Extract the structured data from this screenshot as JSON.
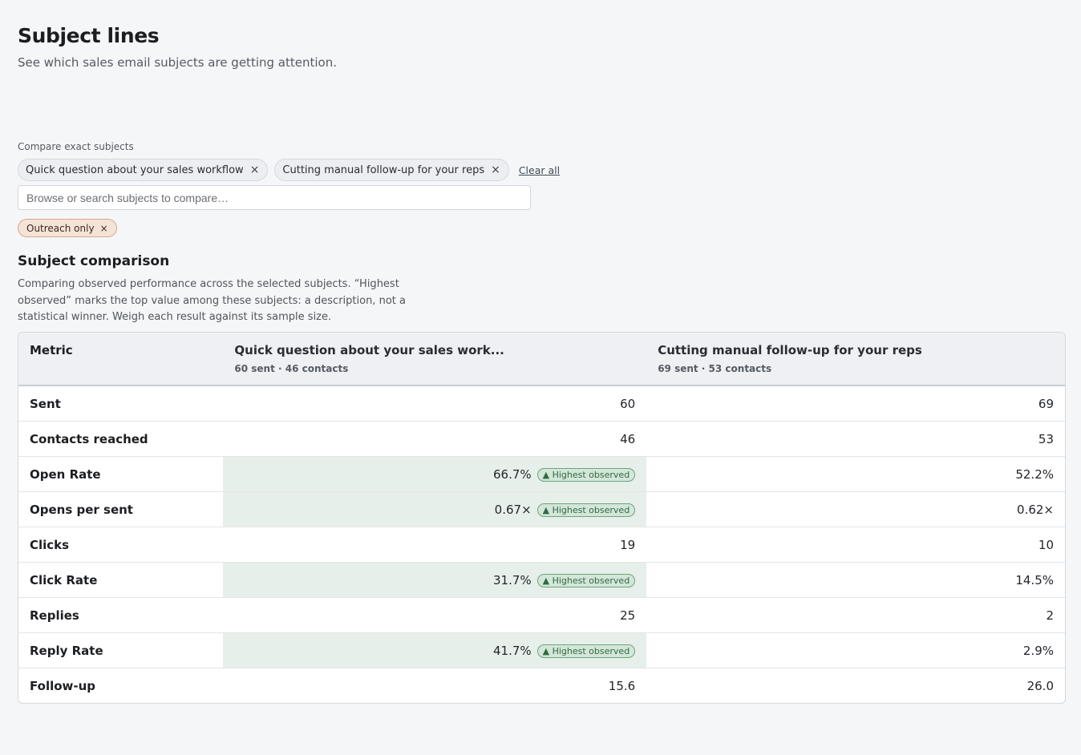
{
  "page": {
    "title": "Subject lines",
    "subtitle": "See which sales email subjects are getting attention."
  },
  "compare": {
    "label": "Compare exact subjects",
    "chips": [
      {
        "label": "Quick question about your sales workflow"
      },
      {
        "label": "Cutting manual follow-up for your reps"
      }
    ],
    "remove_glyph": "×",
    "clear_all": "Clear all",
    "search_placeholder": "Browse or search subjects to compare…"
  },
  "filter": {
    "label": "Outreach only",
    "remove_glyph": "×",
    "color": "#f6e3d7"
  },
  "comparison": {
    "heading": "Subject comparison",
    "description": "Comparing observed performance across the selected subjects. “Highest observed” marks the top value among these subjects: a description, not a statistical winner. Weigh each result against its sample size.",
    "highlight_color": "#e6efe9",
    "badge_label": "▲ Highest observed",
    "columns": {
      "metric": "Metric",
      "subjects": [
        {
          "title": "Quick question about your sales work...",
          "meta": "60 sent · 46 contacts"
        },
        {
          "title": "Cutting manual follow-up for your reps",
          "meta": "69 sent · 53 contacts"
        }
      ]
    },
    "rows": [
      {
        "metric": "Sent",
        "a": "60",
        "b": "69"
      },
      {
        "metric": "Contacts reached",
        "a": "46",
        "b": "53"
      },
      {
        "metric": "Open Rate",
        "a": "66.7%",
        "b": "52.2%"
      },
      {
        "metric": "Opens per sent",
        "a": "0.67×",
        "b": "0.62×"
      },
      {
        "metric": "Clicks",
        "a": "19",
        "b": "10"
      },
      {
        "metric": "Click Rate",
        "a": "31.7%",
        "b": "14.5%"
      },
      {
        "metric": "Replies",
        "a": "25",
        "b": "2"
      },
      {
        "metric": "Reply Rate",
        "a": "41.7%",
        "b": "2.9%"
      },
      {
        "metric": "Follow-up",
        "a": "15.6",
        "b": "26.0"
      }
    ]
  }
}
